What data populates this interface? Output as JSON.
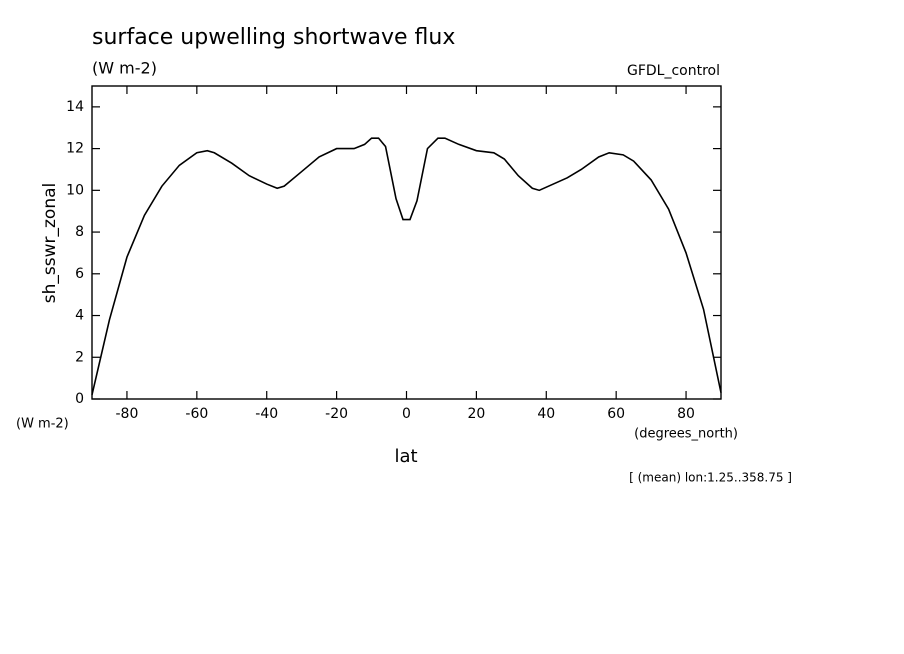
{
  "chart_data": {
    "type": "line",
    "title": "surface upwelling shortwave flux",
    "subtitle": "(W m-2)",
    "source": "GFDL_control",
    "y_label": "sh_sswr_zonal",
    "y_units": "(W m-2)",
    "x_label": "lat",
    "x_units": "(degrees_north)",
    "annotation": "[ (mean) lon:1.25..358.75 ]",
    "x": [
      -90,
      -85,
      -80,
      -75,
      -70,
      -65,
      -60,
      -57,
      -55,
      -50,
      -45,
      -40,
      -37,
      -35,
      -30,
      -25,
      -20,
      -15,
      -12,
      -10,
      -8,
      -6,
      -3,
      -1,
      1,
      3,
      6,
      9,
      11,
      15,
      20,
      25,
      28,
      32,
      36,
      38,
      42,
      46,
      50,
      55,
      58,
      62,
      65,
      70,
      75,
      80,
      85,
      90
    ],
    "series": [
      {
        "color": "#000000",
        "values": [
          0.2,
          3.8,
          6.8,
          8.8,
          10.2,
          11.2,
          11.8,
          11.9,
          11.8,
          11.3,
          10.7,
          10.3,
          10.1,
          10.2,
          10.9,
          11.6,
          12.0,
          12.0,
          12.2,
          12.5,
          12.5,
          12.1,
          9.6,
          8.6,
          8.6,
          9.5,
          12.0,
          12.5,
          12.5,
          12.2,
          11.9,
          11.8,
          11.5,
          10.7,
          10.1,
          10.0,
          10.3,
          10.6,
          11.0,
          11.6,
          11.8,
          11.7,
          11.4,
          10.5,
          9.1,
          7.0,
          4.3,
          0.3
        ]
      }
    ],
    "xlim": [
      -90,
      90
    ],
    "xticks": [
      -80,
      -60,
      -40,
      -20,
      0,
      20,
      40,
      60,
      80
    ],
    "ylim": [
      0,
      15
    ],
    "yticks": [
      0,
      2,
      4,
      6,
      8,
      10,
      12,
      14
    ]
  }
}
